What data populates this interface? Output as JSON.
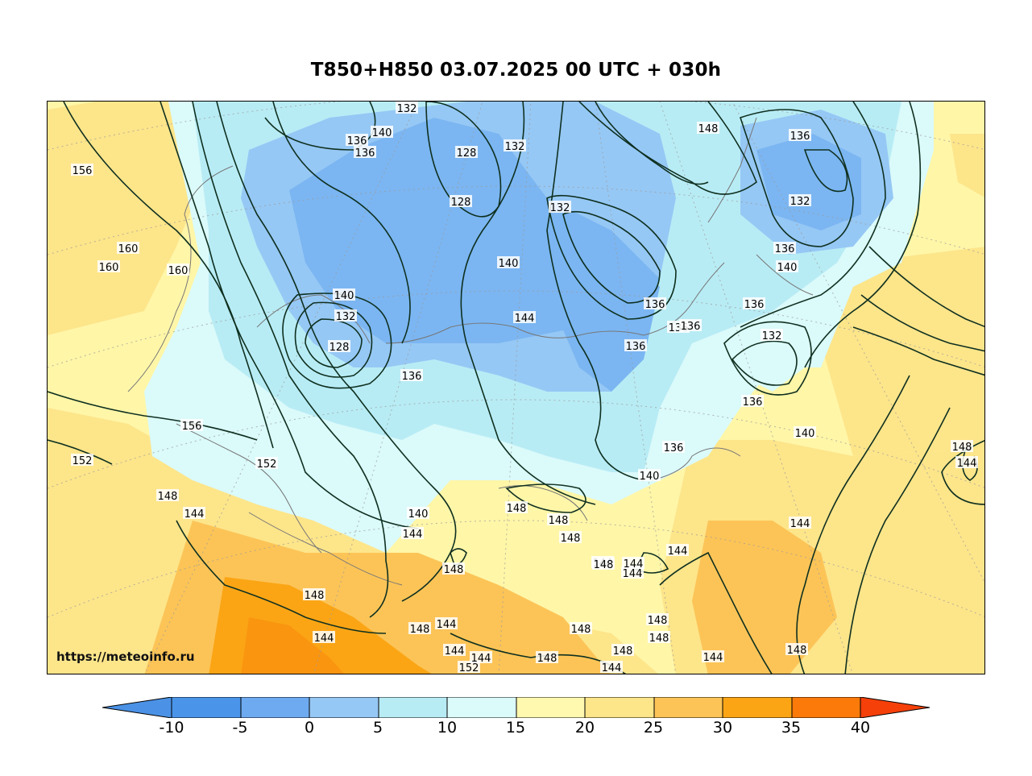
{
  "title": "T850+H850 03.07.2025 00 UTC + 030h",
  "watermark": "https://meteoinfo.ru",
  "colorbar": {
    "ticks": [
      "-10",
      "-5",
      "0",
      "5",
      "10",
      "15",
      "20",
      "25",
      "30",
      "35",
      "40"
    ],
    "under_color": "#4b92e6",
    "colors": [
      "#4a95ea",
      "#6eaaf0",
      "#96c8f5",
      "#b8ecf5",
      "#dbfafa",
      "#fff9b0",
      "#fde58a",
      "#fcc457",
      "#fba515",
      "#fc7a0a",
      "#f5400a"
    ],
    "over_color": "#f5400a"
  },
  "contour_labels": [
    "132",
    "140",
    "136",
    "136",
    "128",
    "132",
    "156",
    "128",
    "148",
    "136",
    "132",
    "160",
    "160",
    "160",
    "140",
    "132",
    "128",
    "132",
    "140",
    "136",
    "144",
    "136",
    "136",
    "136",
    "136",
    "132",
    "140",
    "136",
    "156",
    "136",
    "136",
    "152",
    "152",
    "148",
    "144",
    "140",
    "140",
    "136",
    "140",
    "148",
    "144",
    "148",
    "148",
    "148",
    "144",
    "148",
    "148",
    "144",
    "144",
    "144",
    "148",
    "144",
    "148",
    "144",
    "148",
    "148",
    "148",
    "148",
    "144",
    "152",
    "144",
    "144",
    "148",
    "144",
    "144",
    "148",
    "144"
  ]
}
